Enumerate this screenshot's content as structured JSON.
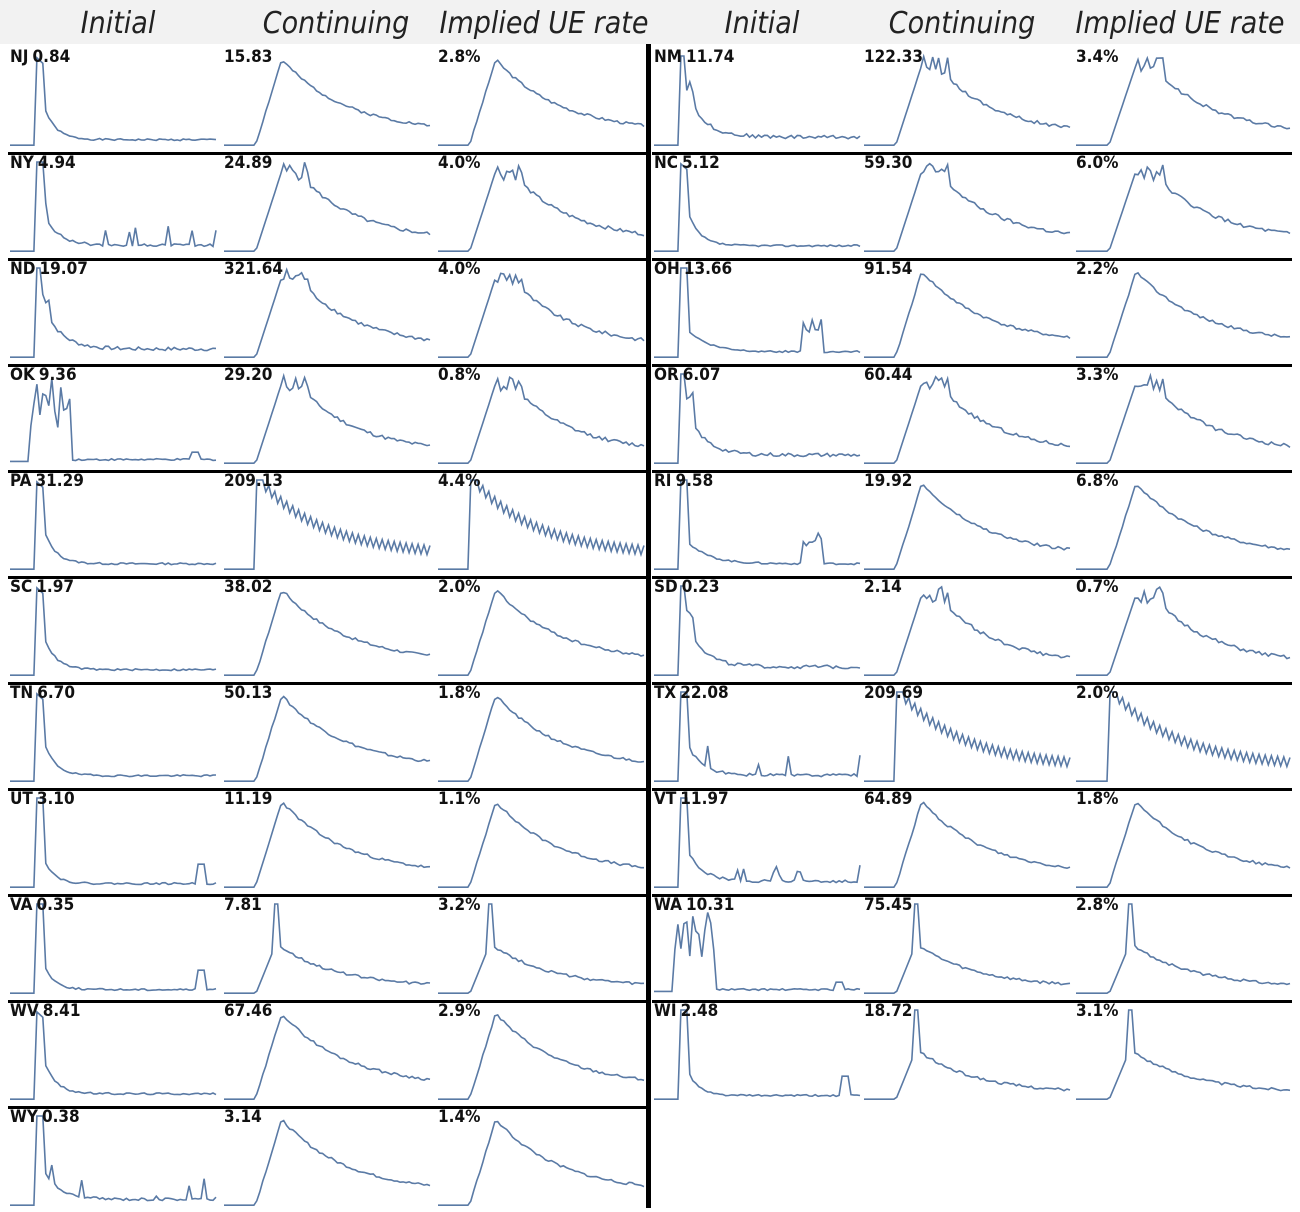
{
  "headers": [
    "Initial",
    "Continuing",
    "Implied UE rate",
    "Initial",
    "Continuing",
    "Implied UE rate"
  ],
  "colors": {
    "line": "#5a7aa5",
    "rule": "#000000",
    "header_bg": "#f2f2f2"
  },
  "chart_data": {
    "type": "line",
    "layout": "small-multiples",
    "series_per_state": [
      "Initial",
      "Continuing",
      "Implied UE rate"
    ],
    "panels": [
      {
        "rows": [
          {
            "state": "NJ",
            "initial": "0.84",
            "continuing": "15.83",
            "rate": "2.8%",
            "shapes": [
              "A",
              "B",
              "B"
            ]
          },
          {
            "state": "NY",
            "initial": "4.94",
            "continuing": "24.89",
            "rate": "4.0%",
            "shapes": [
              "C",
              "D",
              "D"
            ]
          },
          {
            "state": "ND",
            "initial": "19.07",
            "continuing": "321.64",
            "rate": "4.0%",
            "shapes": [
              "E",
              "D",
              "D"
            ]
          },
          {
            "state": "OK",
            "initial": "9.36",
            "continuing": "29.20",
            "rate": "0.8%",
            "shapes": [
              "F",
              "D",
              "D"
            ]
          },
          {
            "state": "PA",
            "initial": "31.29",
            "continuing": "209.13",
            "rate": "4.4%",
            "shapes": [
              "A",
              "G",
              "G"
            ]
          },
          {
            "state": "SC",
            "initial": "1.97",
            "continuing": "38.02",
            "rate": "2.0%",
            "shapes": [
              "A",
              "B",
              "B"
            ]
          },
          {
            "state": "TN",
            "initial": "6.70",
            "continuing": "50.13",
            "rate": "1.8%",
            "shapes": [
              "A",
              "B",
              "B"
            ]
          },
          {
            "state": "UT",
            "initial": "3.10",
            "continuing": "11.19",
            "rate": "1.1%",
            "shapes": [
              "H",
              "B",
              "B"
            ]
          },
          {
            "state": "VA",
            "initial": "0.35",
            "continuing": "7.81",
            "rate": "3.2%",
            "shapes": [
              "H",
              "I",
              "I"
            ]
          },
          {
            "state": "WV",
            "initial": "8.41",
            "continuing": "67.46",
            "rate": "2.9%",
            "shapes": [
              "A",
              "B",
              "B"
            ]
          },
          {
            "state": "WY",
            "initial": "0.38",
            "continuing": "3.14",
            "rate": "1.4%",
            "shapes": [
              "C",
              "B",
              "B"
            ]
          }
        ]
      },
      {
        "rows": [
          {
            "state": "NM",
            "initial": "11.74",
            "continuing": "122.33",
            "rate": "3.4%",
            "shapes": [
              "E",
              "D",
              "D"
            ]
          },
          {
            "state": "NC",
            "initial": "5.12",
            "continuing": "59.30",
            "rate": "6.0%",
            "shapes": [
              "A",
              "D",
              "D"
            ]
          },
          {
            "state": "OH",
            "initial": "13.66",
            "continuing": "91.54",
            "rate": "2.2%",
            "shapes": [
              "J",
              "B",
              "B"
            ]
          },
          {
            "state": "OR",
            "initial": "6.07",
            "continuing": "60.44",
            "rate": "3.3%",
            "shapes": [
              "E",
              "D",
              "D"
            ]
          },
          {
            "state": "RI",
            "initial": "9.58",
            "continuing": "19.92",
            "rate": "6.8%",
            "shapes": [
              "J",
              "B",
              "B"
            ]
          },
          {
            "state": "SD",
            "initial": "0.23",
            "continuing": "2.14",
            "rate": "0.7%",
            "shapes": [
              "E",
              "D",
              "D"
            ]
          },
          {
            "state": "TX",
            "initial": "22.08",
            "continuing": "209.69",
            "rate": "2.0%",
            "shapes": [
              "C",
              "G",
              "G"
            ]
          },
          {
            "state": "VT",
            "initial": "11.97",
            "continuing": "64.89",
            "rate": "1.8%",
            "shapes": [
              "C",
              "B",
              "B"
            ]
          },
          {
            "state": "WA",
            "initial": "10.31",
            "continuing": "75.45",
            "rate": "2.8%",
            "shapes": [
              "F",
              "I",
              "I"
            ]
          },
          {
            "state": "WI",
            "initial": "2.48",
            "continuing": "18.72",
            "rate": "3.1%",
            "shapes": [
              "H",
              "I",
              "I"
            ]
          }
        ]
      }
    ]
  }
}
